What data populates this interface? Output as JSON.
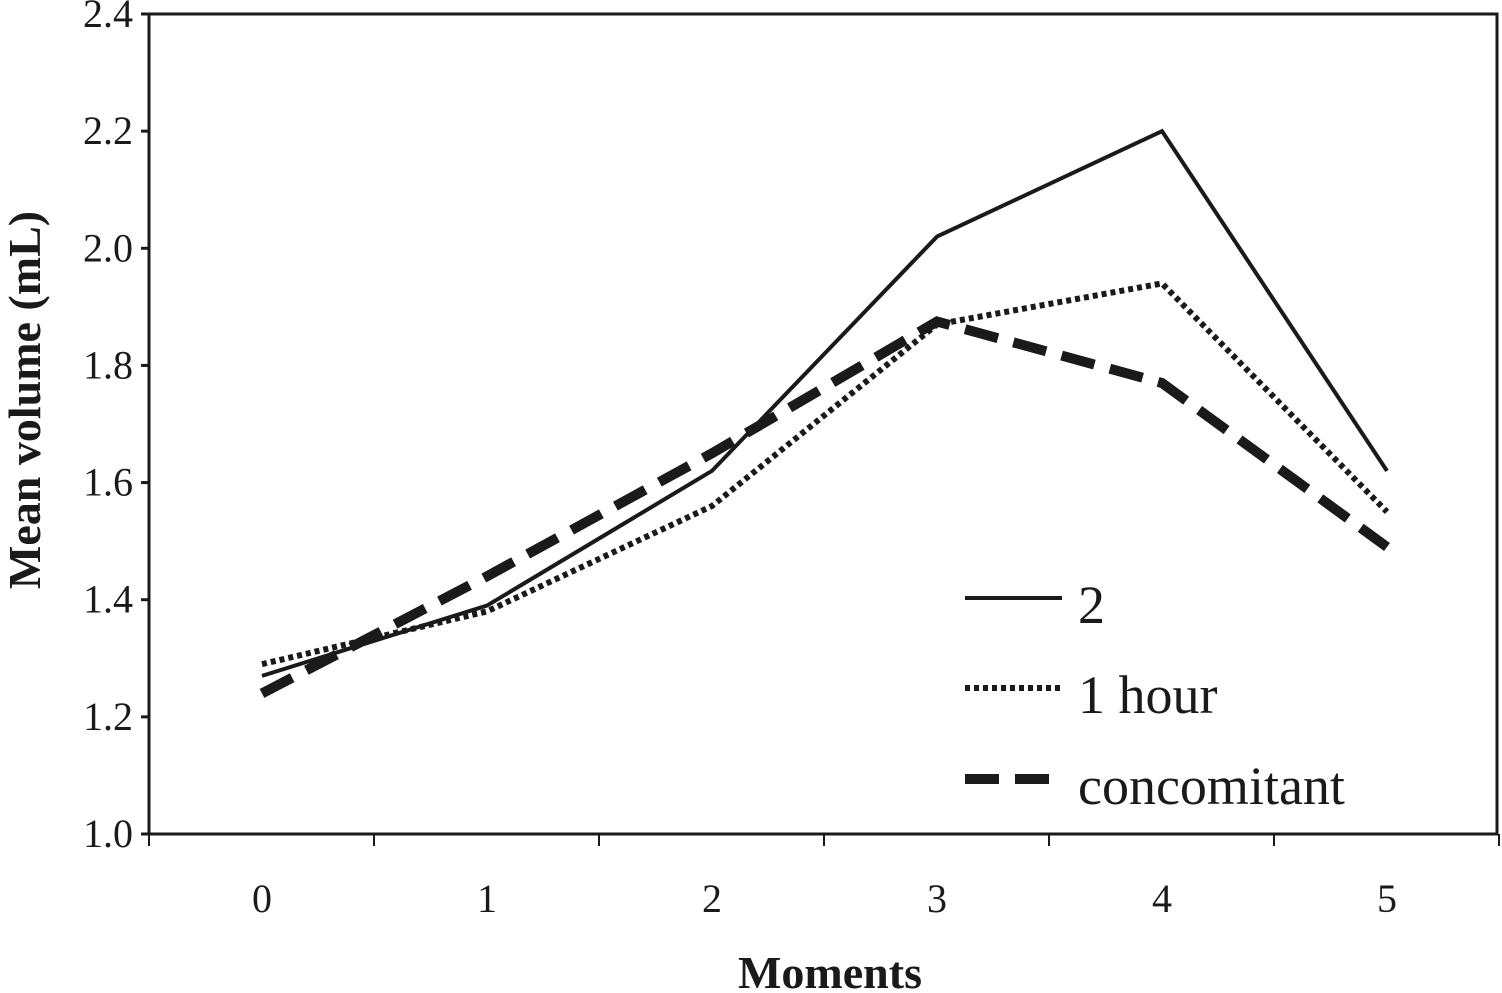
{
  "chart_data": {
    "type": "line",
    "title": "",
    "xlabel": "Moments",
    "ylabel": "Mean volume (mL)",
    "x": [
      0,
      1,
      2,
      3,
      4,
      5
    ],
    "x_tick_labels": [
      "0",
      "1",
      "2",
      "3",
      "4",
      "5"
    ],
    "ylim": [
      1.0,
      2.4
    ],
    "y_ticks": [
      1.0,
      1.2,
      1.4,
      1.6,
      1.8,
      2.0,
      2.2,
      2.4
    ],
    "y_tick_labels": [
      "1.0",
      "1.2",
      "1.4",
      "1.6",
      "1.8",
      "2.0",
      "2.2",
      "2.4"
    ],
    "grid": false,
    "legend_position": "bottom-right",
    "series": [
      {
        "name": "2",
        "style": "solid",
        "color": "#1a1a1a",
        "values": [
          1.27,
          1.39,
          1.62,
          2.02,
          2.2,
          1.62
        ]
      },
      {
        "name": "1 hour",
        "style": "dotted",
        "color": "#1a1a1a",
        "values": [
          1.29,
          1.38,
          1.56,
          1.87,
          1.94,
          1.55
        ]
      },
      {
        "name": "concomitant",
        "style": "dashed",
        "color": "#1a1a1a",
        "values": [
          1.24,
          1.44,
          1.65,
          1.875,
          1.77,
          1.49
        ]
      }
    ]
  }
}
